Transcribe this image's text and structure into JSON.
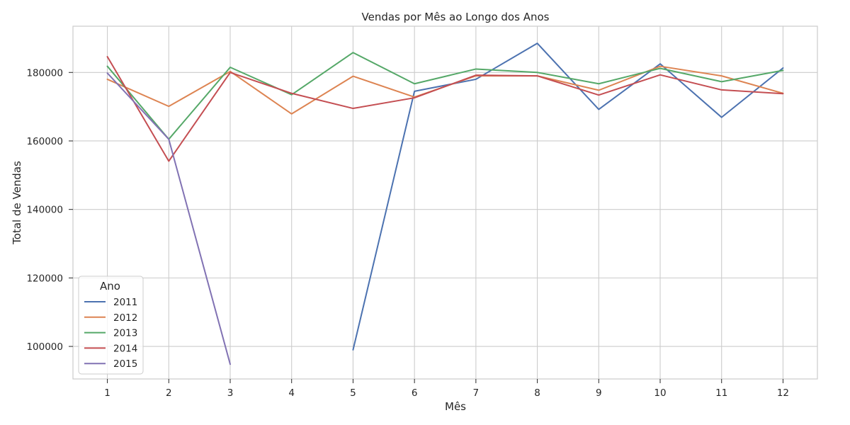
{
  "chart_data": {
    "type": "line",
    "title": "Vendas por Mês ao Longo dos Anos",
    "xlabel": "Mês",
    "ylabel": "Total de Vendas",
    "x": [
      1,
      2,
      3,
      4,
      5,
      6,
      7,
      8,
      9,
      10,
      11,
      12
    ],
    "xticks": [
      "1",
      "2",
      "3",
      "4",
      "5",
      "6",
      "7",
      "8",
      "9",
      "10",
      "11",
      "12"
    ],
    "xlim": [
      0.44,
      12.56
    ],
    "ylim": [
      90500,
      193500
    ],
    "yticks": [
      100000,
      120000,
      140000,
      160000,
      180000
    ],
    "grid": true,
    "legend": {
      "title": "Ano",
      "position": "lower-left"
    },
    "series": [
      {
        "name": "2011",
        "color": "#4c72b0",
        "values": [
          null,
          null,
          null,
          null,
          99000,
          174500,
          178000,
          188500,
          169200,
          182500,
          166900,
          181300
        ]
      },
      {
        "name": "2012",
        "color": "#dd8452",
        "values": [
          178000,
          170100,
          180300,
          167900,
          178900,
          172800,
          179000,
          179000,
          174800,
          181800,
          179000,
          173900
        ]
      },
      {
        "name": "2013",
        "color": "#55a868",
        "values": [
          181800,
          160500,
          181500,
          173500,
          185800,
          176700,
          181000,
          180000,
          176700,
          181200,
          177300,
          180600
        ]
      },
      {
        "name": "2014",
        "color": "#c44e52",
        "values": [
          184600,
          154100,
          180000,
          173900,
          169500,
          172600,
          179200,
          179000,
          173400,
          179300,
          174900,
          173800
        ]
      },
      {
        "name": "2015",
        "color": "#8172b3",
        "values": [
          179800,
          160500,
          94800,
          null,
          null,
          null,
          null,
          null,
          null,
          null,
          null,
          null
        ]
      }
    ]
  }
}
